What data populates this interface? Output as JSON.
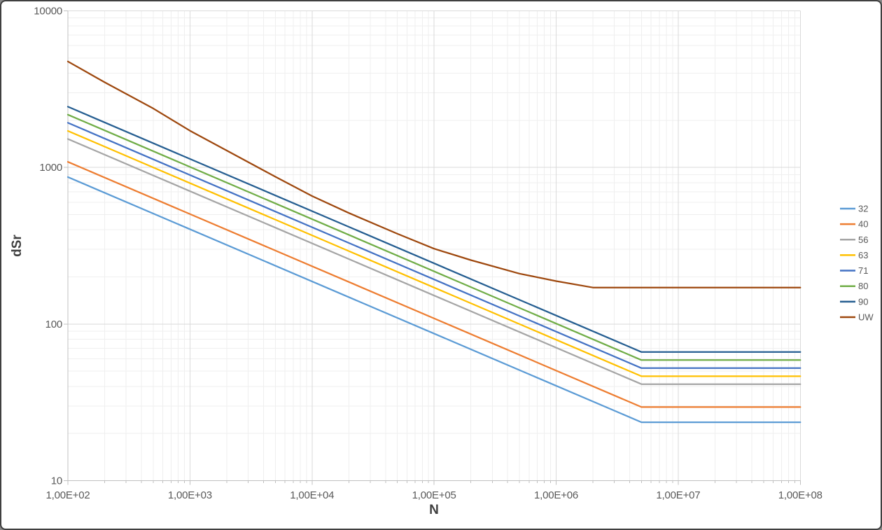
{
  "chart_data": {
    "type": "line",
    "title": "",
    "xlabel": "N",
    "ylabel": "dSr",
    "x_scale": "log",
    "y_scale": "log",
    "xlim": [
      100,
      100000000
    ],
    "ylim": [
      10,
      10000
    ],
    "grid": "major and minor log gridlines, both axes",
    "legend_position": "right",
    "x_ticks": [
      {
        "value": 100,
        "label": "1,00E+02"
      },
      {
        "value": 1000,
        "label": "1,00E+03"
      },
      {
        "value": 10000,
        "label": "1,00E+04"
      },
      {
        "value": 100000,
        "label": "1,00E+05"
      },
      {
        "value": 1000000,
        "label": "1,00E+06"
      },
      {
        "value": 10000000,
        "label": "1,00E+07"
      },
      {
        "value": 100000000,
        "label": "1,00E+08"
      }
    ],
    "y_ticks": [
      {
        "value": 10,
        "label": "10"
      },
      {
        "value": 100,
        "label": "100"
      },
      {
        "value": 1000,
        "label": "1000"
      },
      {
        "value": 10000,
        "label": "10000"
      }
    ],
    "series": [
      {
        "label": "32",
        "color": "#5B9BD5",
        "points": [
          [
            100,
            868.6
          ],
          [
            5000000,
            23.6
          ],
          [
            100000000,
            23.6
          ]
        ]
      },
      {
        "label": "40",
        "color": "#ED7D31",
        "points": [
          [
            100,
            1085.8
          ],
          [
            5000000,
            29.5
          ],
          [
            100000000,
            29.5
          ]
        ]
      },
      {
        "label": "56",
        "color": "#A5A5A5",
        "points": [
          [
            100,
            1520.1
          ],
          [
            5000000,
            41.3
          ],
          [
            100000000,
            41.3
          ]
        ]
      },
      {
        "label": "63",
        "color": "#FFC000",
        "points": [
          [
            100,
            1710.1
          ],
          [
            5000000,
            46.4
          ],
          [
            100000000,
            46.4
          ]
        ]
      },
      {
        "label": "71",
        "color": "#4472C4",
        "points": [
          [
            100,
            1927.2
          ],
          [
            5000000,
            52.3
          ],
          [
            100000000,
            52.3
          ]
        ]
      },
      {
        "label": "80",
        "color": "#70AD47",
        "points": [
          [
            100,
            2171.5
          ],
          [
            5000000,
            58.9
          ],
          [
            100000000,
            58.9
          ]
        ]
      },
      {
        "label": "90",
        "color": "#255E91",
        "points": [
          [
            100,
            2443.0
          ],
          [
            5000000,
            66.3
          ],
          [
            100000000,
            66.3
          ]
        ]
      },
      {
        "label": "UW",
        "color": "#9E480E",
        "points": [
          [
            100,
            4750
          ],
          [
            200,
            3500
          ],
          [
            500,
            2380
          ],
          [
            1000,
            1716
          ],
          [
            2000,
            1282
          ],
          [
            5000,
            873
          ],
          [
            10000,
            657
          ],
          [
            20000,
            512
          ],
          [
            50000,
            377
          ],
          [
            100000,
            303
          ],
          [
            200000,
            256
          ],
          [
            500000,
            210
          ],
          [
            1000000,
            188
          ],
          [
            2000000,
            171
          ],
          [
            100000000,
            171
          ]
        ]
      }
    ]
  }
}
